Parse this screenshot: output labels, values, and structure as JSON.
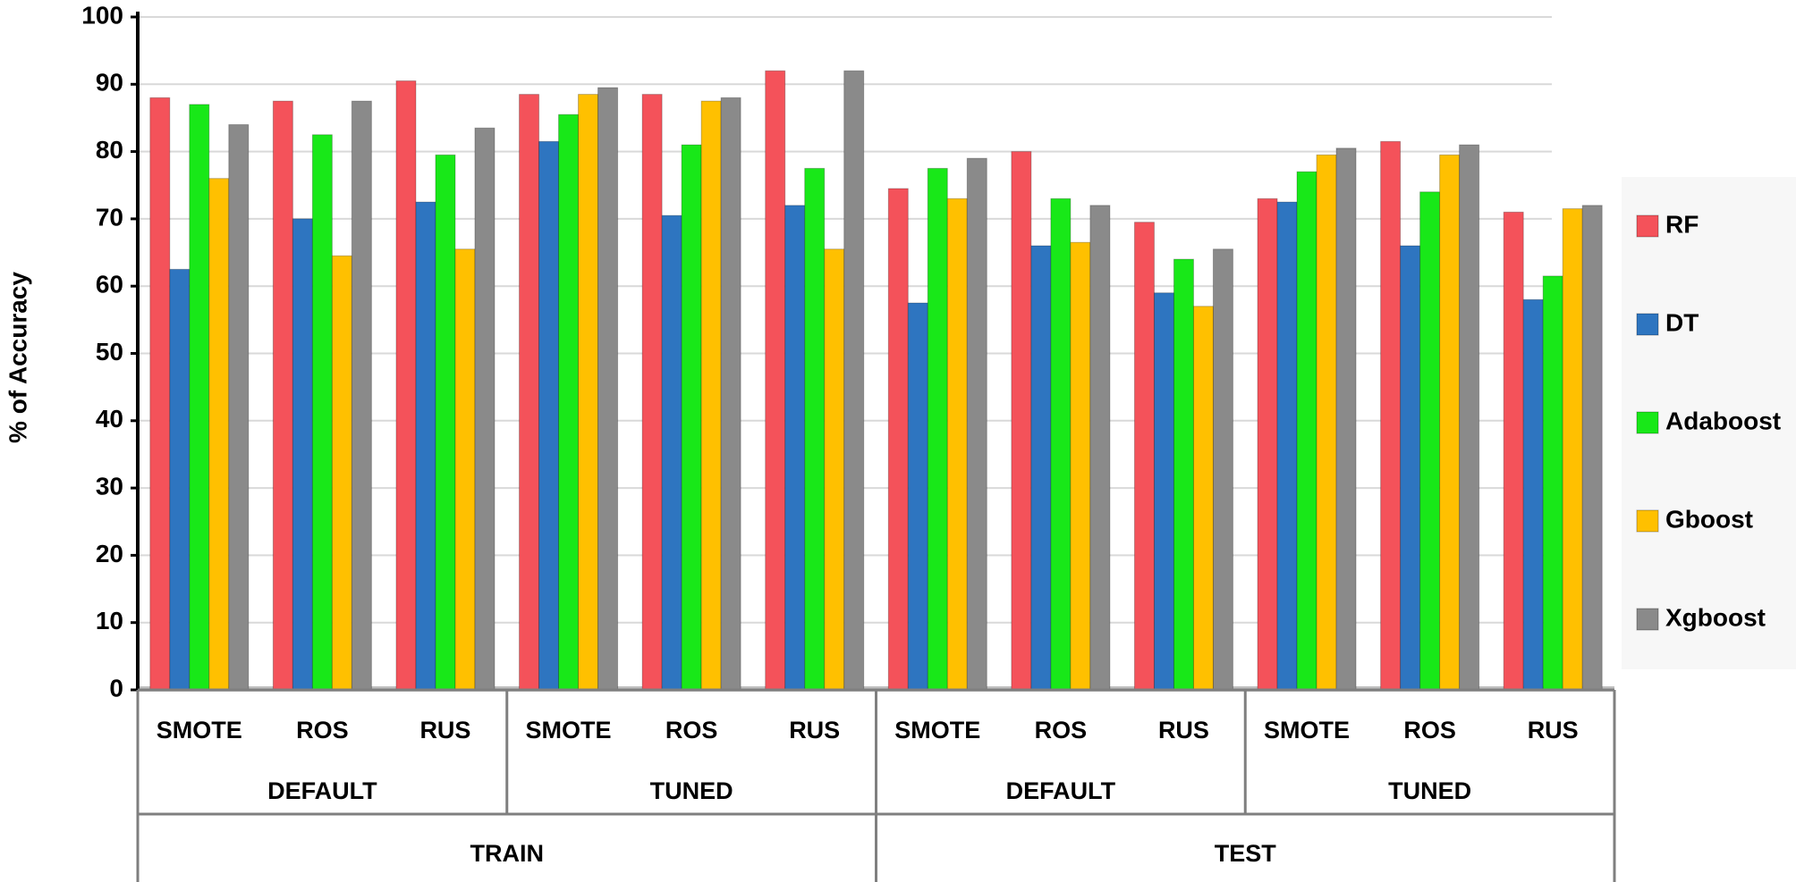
{
  "chart_data": {
    "type": "bar",
    "y_label": "% of Accuracy",
    "ylim": [
      0,
      100
    ],
    "yticks": [
      0,
      10,
      20,
      30,
      40,
      50,
      60,
      70,
      80,
      90,
      100
    ],
    "grid": true,
    "legend": "right",
    "groups": [
      {
        "name": "TRAIN",
        "subgroups": [
          {
            "name": "DEFAULT",
            "categories": [
              "SMOTE",
              "ROS",
              "RUS"
            ]
          },
          {
            "name": "TUNED",
            "categories": [
              "SMOTE",
              "ROS",
              "RUS"
            ]
          }
        ]
      },
      {
        "name": "TEST",
        "subgroups": [
          {
            "name": "DEFAULT",
            "categories": [
              "SMOTE",
              "ROS",
              "RUS"
            ]
          },
          {
            "name": "TUNED",
            "categories": [
              "SMOTE",
              "ROS",
              "RUS"
            ]
          }
        ]
      }
    ],
    "series": [
      {
        "name": "RF",
        "color": "#f4525a",
        "values": [
          88,
          87.5,
          90.5,
          88.5,
          88.5,
          92,
          74.5,
          80,
          69.5,
          73,
          81.5,
          71
        ]
      },
      {
        "name": "DT",
        "color": "#2e75c0",
        "values": [
          62.5,
          70,
          72.5,
          81.5,
          70.5,
          72,
          57.5,
          66,
          59,
          72.5,
          66,
          58
        ]
      },
      {
        "name": "Adaboost",
        "color": "#18e818",
        "values": [
          87,
          82.5,
          79.5,
          85.5,
          81,
          77.5,
          77.5,
          73,
          64,
          77,
          74,
          61.5
        ]
      },
      {
        "name": "Gboost",
        "color": "#ffc000",
        "values": [
          76,
          64.5,
          65.5,
          88.5,
          87.5,
          65.5,
          73,
          66.5,
          57,
          79.5,
          79.5,
          71.5
        ]
      },
      {
        "name": "Xgboost",
        "color": "#8a8a8a",
        "values": [
          84,
          87.5,
          83.5,
          89.5,
          88,
          92,
          79,
          72,
          65.5,
          80.5,
          81,
          72
        ]
      }
    ]
  }
}
